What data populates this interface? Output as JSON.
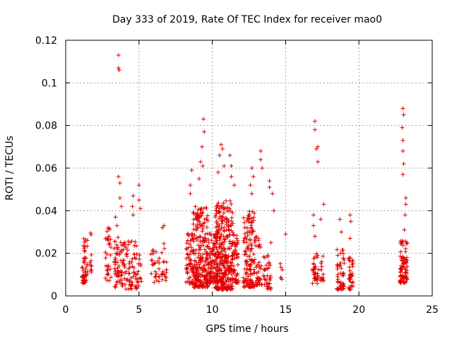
{
  "chart_data": {
    "type": "scatter",
    "title": "Day 333 of 2019, Rate Of TEC Index for receiver mao0",
    "xlabel": "GPS time / hours",
    "ylabel": "ROTI / TECUs",
    "xlim": [
      0,
      25
    ],
    "ylim": [
      0,
      0.12
    ],
    "xticks": [
      "0",
      "5",
      "10",
      "15",
      "20",
      "25"
    ],
    "yticks": [
      "0",
      "0.02",
      "0.04",
      "0.06",
      "0.08",
      "0.1",
      "0.12"
    ],
    "grid": true,
    "marker": "plus",
    "marker_color": "#e00000",
    "series": [
      {
        "points": [
          [
            3.6,
            0.113
          ],
          [
            3.6,
            0.107
          ],
          [
            3.65,
            0.106
          ],
          [
            9.4,
            0.083
          ],
          [
            9.45,
            0.077
          ],
          [
            17.0,
            0.082
          ],
          [
            17.0,
            0.078
          ],
          [
            17.1,
            0.069
          ],
          [
            17.2,
            0.07
          ],
          [
            17.2,
            0.063
          ],
          [
            23.0,
            0.088
          ],
          [
            23.05,
            0.085
          ],
          [
            22.95,
            0.079
          ],
          [
            23.0,
            0.073
          ],
          [
            23.0,
            0.068
          ],
          [
            23.05,
            0.062
          ],
          [
            23.0,
            0.057
          ],
          [
            23.2,
            0.046
          ],
          [
            23.2,
            0.043
          ],
          [
            23.15,
            0.038
          ],
          [
            23.1,
            0.031
          ],
          [
            9.3,
            0.07
          ],
          [
            9.2,
            0.063
          ],
          [
            9.35,
            0.061
          ],
          [
            9.1,
            0.055
          ],
          [
            8.6,
            0.059
          ],
          [
            8.5,
            0.052
          ],
          [
            8.5,
            0.048
          ],
          [
            10.6,
            0.071
          ],
          [
            10.7,
            0.069
          ],
          [
            10.5,
            0.066
          ],
          [
            10.8,
            0.061
          ],
          [
            10.4,
            0.058
          ],
          [
            11.2,
            0.066
          ],
          [
            11.3,
            0.061
          ],
          [
            11.3,
            0.056
          ],
          [
            11.5,
            0.052
          ],
          [
            12.7,
            0.06
          ],
          [
            12.8,
            0.056
          ],
          [
            12.6,
            0.052
          ],
          [
            12.7,
            0.048
          ],
          [
            13.3,
            0.068
          ],
          [
            13.3,
            0.064
          ],
          [
            13.4,
            0.06
          ],
          [
            13.9,
            0.054
          ],
          [
            13.9,
            0.051
          ],
          [
            14.1,
            0.048
          ],
          [
            14.2,
            0.04
          ],
          [
            3.6,
            0.056
          ],
          [
            3.7,
            0.053
          ],
          [
            3.7,
            0.046
          ],
          [
            3.8,
            0.042
          ],
          [
            4.6,
            0.047
          ],
          [
            4.55,
            0.042
          ],
          [
            4.6,
            0.038
          ],
          [
            5.0,
            0.052
          ],
          [
            5.0,
            0.045
          ],
          [
            5.1,
            0.041
          ],
          [
            17.6,
            0.043
          ],
          [
            17.4,
            0.036
          ],
          [
            16.9,
            0.038
          ],
          [
            16.9,
            0.033
          ],
          [
            17.0,
            0.028
          ],
          [
            18.7,
            0.036
          ],
          [
            18.8,
            0.03
          ],
          [
            19.4,
            0.038
          ],
          [
            19.45,
            0.035
          ],
          [
            19.4,
            0.027
          ],
          [
            2.9,
            0.032
          ],
          [
            2.95,
            0.028
          ],
          [
            3.4,
            0.037
          ],
          [
            3.5,
            0.033
          ],
          [
            6.6,
            0.032
          ],
          [
            6.7,
            0.033
          ],
          [
            15.0,
            0.029
          ],
          [
            14.0,
            0.025
          ]
        ]
      }
    ]
  }
}
